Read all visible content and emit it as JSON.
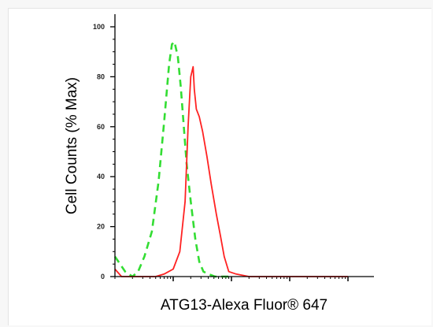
{
  "chart_data": {
    "type": "line",
    "title": "",
    "xlabel": "ATG13-Alexa Fluor® 647",
    "ylabel": "Cell Counts (% Max)",
    "x_scale": "log",
    "xlim": [
      1,
      10000
    ],
    "ylim": [
      0,
      100
    ],
    "y_ticks": [
      0,
      20,
      40,
      60,
      80,
      100
    ],
    "y_tick_labels": [
      "0",
      "20",
      "40",
      "60",
      "80",
      "100"
    ],
    "grid": false,
    "legend": "none",
    "series": [
      {
        "color": "#33dd33",
        "style": "dashed",
        "x": [
          1,
          1.5,
          2,
          2.5,
          3.2,
          4.3,
          5.6,
          7,
          8.5,
          9.5,
          10.5,
          12,
          13.5,
          15,
          17,
          20,
          24,
          28,
          33,
          40,
          52,
          70,
          100
        ],
        "y": [
          8,
          2,
          0,
          2,
          8,
          18,
          38,
          62,
          85,
          93,
          94,
          88,
          76,
          62,
          45,
          30,
          15,
          6,
          2,
          1,
          0,
          0,
          0
        ]
      },
      {
        "color": "#ff2222",
        "style": "solid",
        "x": [
          1,
          1.3,
          2,
          5,
          7,
          10,
          13,
          16,
          18,
          20,
          22,
          23,
          25,
          28,
          32,
          38,
          45,
          55,
          65,
          75,
          90,
          120,
          200,
          1000,
          10000
        ],
        "y": [
          3,
          0,
          0,
          0,
          1,
          3,
          10,
          30,
          60,
          80,
          84,
          75,
          67,
          64,
          58,
          48,
          37,
          25,
          16,
          8,
          2,
          1,
          0,
          0,
          0
        ]
      }
    ]
  }
}
